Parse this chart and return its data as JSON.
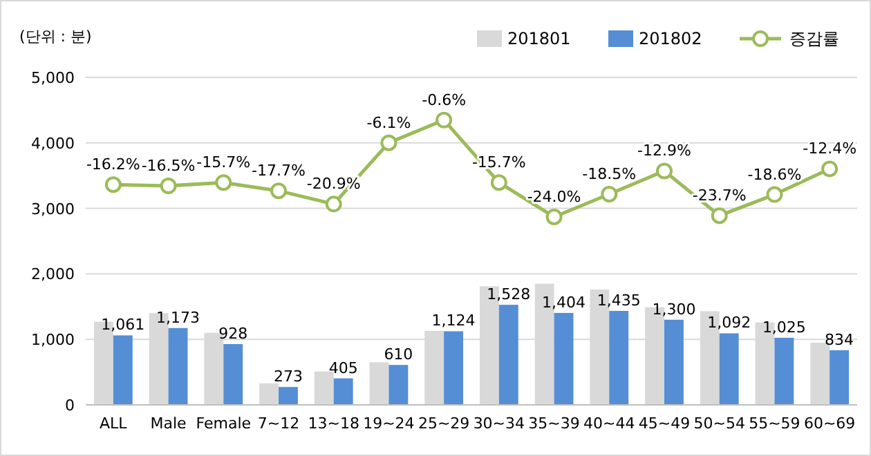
{
  "chart_data": {
    "type": "bar",
    "ylabel": "(단위 : 분)",
    "categories": [
      "ALL",
      "Male",
      "Female",
      "7~12",
      "13~18",
      "19~24",
      "25~29",
      "30~34",
      "35~39",
      "40~44",
      "45~49",
      "50~54",
      "55~59",
      "60~69"
    ],
    "series": [
      {
        "name": "201801",
        "color": "#d9d9d9",
        "values": [
          1270,
          1400,
          1100,
          330,
          510,
          650,
          1130,
          1810,
          1850,
          1760,
          1490,
          1430,
          1260,
          950
        ]
      },
      {
        "name": "201802",
        "color": "#558ed5",
        "values": [
          1061,
          1173,
          928,
          273,
          405,
          610,
          1124,
          1528,
          1404,
          1435,
          1300,
          1092,
          1025,
          834
        ],
        "value_labels": [
          "1,061",
          "1,173",
          "928",
          "273",
          "405",
          "610",
          "1,124",
          "1,528",
          "1,404",
          "1,435",
          "1,300",
          "1,092",
          "1,025",
          "834"
        ]
      },
      {
        "name": "증감률",
        "type": "line",
        "axis": "y2",
        "color": "#9bbb59",
        "marker": "circle",
        "values": [
          -16.2,
          -16.5,
          -15.7,
          -17.7,
          -20.9,
          -6.1,
          -0.6,
          -15.7,
          -24.0,
          -18.5,
          -12.9,
          -23.7,
          -18.6,
          -12.4
        ],
        "value_labels": [
          "-16.2%",
          "-16.5%",
          "-15.7%",
          "-17.7%",
          "-20.9%",
          "-6.1%",
          "-0.6%",
          "-15.7%",
          "-24.0%",
          "-18.5%",
          "-12.9%",
          "-23.7%",
          "-18.6%",
          "-12.4%"
        ]
      }
    ],
    "ylim": [
      0,
      5000
    ],
    "yticks": [
      {
        "value": 0,
        "label": "0"
      },
      {
        "value": 1000,
        "label": "1,000"
      },
      {
        "value": 2000,
        "label": "2,000"
      },
      {
        "value": 3000,
        "label": "3,000"
      },
      {
        "value": 4000,
        "label": "4,000"
      },
      {
        "value": 5000,
        "label": "5,000"
      }
    ],
    "y2lim": [
      -69.4,
      9.7
    ],
    "grid": "y",
    "legend": "top right"
  }
}
